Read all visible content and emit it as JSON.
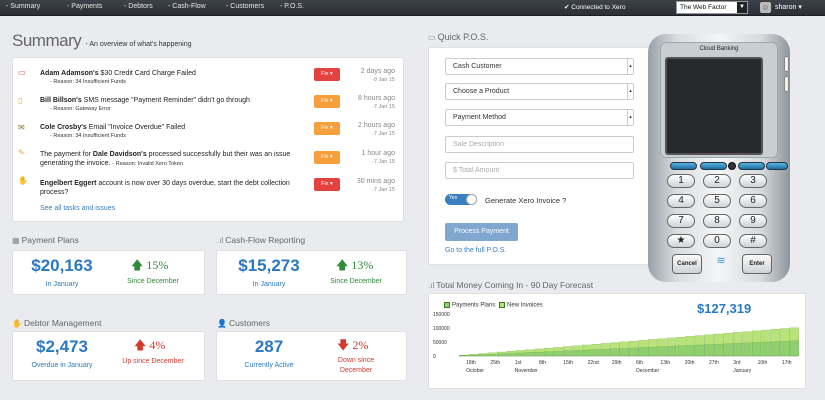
{
  "nav": {
    "items": [
      "- Summary",
      "- Payments",
      "- Debtors",
      "- Cash-Flow",
      "- Customers",
      "- P.O.S."
    ],
    "xero_status": "✔ Connected to Xero",
    "org_selector": "The Web Factor",
    "user": "sharon"
  },
  "summary": {
    "title": "Summary",
    "subtitle": "- An overview of what's happening",
    "tasks": [
      {
        "icon": "credit-card-icon",
        "lead": "Adam Adamson's",
        "text": " $30 Credit Card Charge Failed",
        "reason": "- Reason: 34 Insufficient Funds",
        "fix": "Fix",
        "when": "2 days ago",
        "date": "-9 Jan 15"
      },
      {
        "icon": "mobile-phone-icon",
        "lead": "Bill Billson's",
        "text": " SMS message \"Payment Reminder\" didn't go through",
        "reason": "- Reason: Gateway Error",
        "fix": "Fix",
        "when": "8 hours ago",
        "date": "-7 Jan 15"
      },
      {
        "icon": "envelope-icon",
        "lead": "Cole Crosby's",
        "text": " Email \"Invoice Overdue\" Failed",
        "reason": "- Reason: 34 Insufficient Funds",
        "fix": "Fix",
        "when": "2 hours ago",
        "date": "-7 Jan 15"
      },
      {
        "icon": "edit-icon",
        "pre": "The payment for ",
        "lead": "Dale Davidson's",
        "text": " processed successfully but their was an issue generating the invoice.",
        "reason": "- Reason: Invalid Xero Token",
        "fix": "Fix",
        "when": "1 hour ago",
        "date": "-7 Jan 15"
      },
      {
        "icon": "thumbs-down-icon",
        "lead": "Engelbert Eggert",
        "text": " account is now over 30 days overdue, start the debt collection process?",
        "reason": "",
        "fix": "Fix",
        "when": "30 mins ago",
        "date": "-7 Jan 15"
      }
    ],
    "see_all": "See all tasks and issues"
  },
  "payment_plans": {
    "title": "Payment Plans",
    "value": "$20,163",
    "period": "In January",
    "pct": "15%",
    "pct_label": "Since December"
  },
  "cashflow": {
    "title": "Cash-Flow Reporting",
    "value": "$15,273",
    "period": "In January",
    "pct": "13%",
    "pct_label": "Since December"
  },
  "debtor": {
    "title": "Debtor Management",
    "value": "$2,473",
    "period": "Overdue in January",
    "pct": "4%",
    "pct_label": "Up since December"
  },
  "customers": {
    "title": "Customers",
    "value": "287",
    "period": "Currently Active",
    "pct": "2%",
    "pct_label_1": "Down since",
    "pct_label_2": "December"
  },
  "pos": {
    "title": "Quick P.O.S.",
    "customer": "Cash Customer",
    "product": "Choose a Product",
    "method": "Payment Method",
    "description_placeholder": "Sale Description",
    "amount_placeholder": "$ Total Amount",
    "toggle": "Yes",
    "generate_label": "Generate Xero Invoice ?",
    "process_button": "Process Payment",
    "full_pos_link": "Go to the full P.O.S."
  },
  "terminal": {
    "label": "Cloud Banking",
    "keys": [
      "1",
      "2",
      "3",
      "4",
      "5",
      "6",
      "7",
      "8",
      "9",
      "★",
      "0",
      "#"
    ],
    "cancel": "Cancel",
    "enter": "Enter"
  },
  "forecast": {
    "title": "Total Money Coming In - 90 Day Forecast"
  },
  "chart_data": {
    "type": "bar",
    "stacked": true,
    "total_label": "$127,319",
    "series": [
      {
        "name": "Payments Plans",
        "color": "#8fcf6d",
        "values": [
          2000,
          3500,
          5000,
          6500,
          8000,
          9500,
          11000,
          12500,
          14000,
          15500,
          17000,
          18500,
          20000,
          21500,
          23000,
          24500,
          26000,
          27500,
          29000,
          30500,
          32000,
          33500,
          35000,
          36500,
          38000,
          39500,
          41000,
          42500,
          44000,
          45500,
          47000,
          48500,
          50000,
          51500,
          53000,
          54500
        ]
      },
      {
        "name": "New Invoices",
        "color": "#b9e27b",
        "values": [
          1000,
          2300,
          3600,
          4900,
          6200,
          7500,
          8800,
          10100,
          11400,
          12700,
          14000,
          15300,
          16600,
          17900,
          19200,
          20500,
          21800,
          23100,
          24400,
          25700,
          27000,
          28300,
          29600,
          30900,
          32200,
          33500,
          34800,
          36100,
          37400,
          38700,
          40000,
          41300,
          42600,
          43900,
          45200,
          46500
        ]
      }
    ],
    "x_ticks": [
      "18th",
      "25th",
      "1st",
      "8th",
      "15th",
      "22nd",
      "29th",
      "6th",
      "13th",
      "20th",
      "27th",
      "3rd",
      "10th",
      "17th"
    ],
    "months": [
      "October",
      "November",
      "December",
      "January"
    ],
    "y_ticks": [
      "150000",
      "100000",
      "50000",
      "0"
    ],
    "ylim": [
      0,
      150000
    ]
  },
  "colors": {
    "nav_bg": "#2c3036",
    "accent": "#2b79c2",
    "fix_red": "#e3423f",
    "fix_orange": "#f5a03c",
    "positive": "#2f8a3a",
    "negative": "#d23a2e"
  }
}
